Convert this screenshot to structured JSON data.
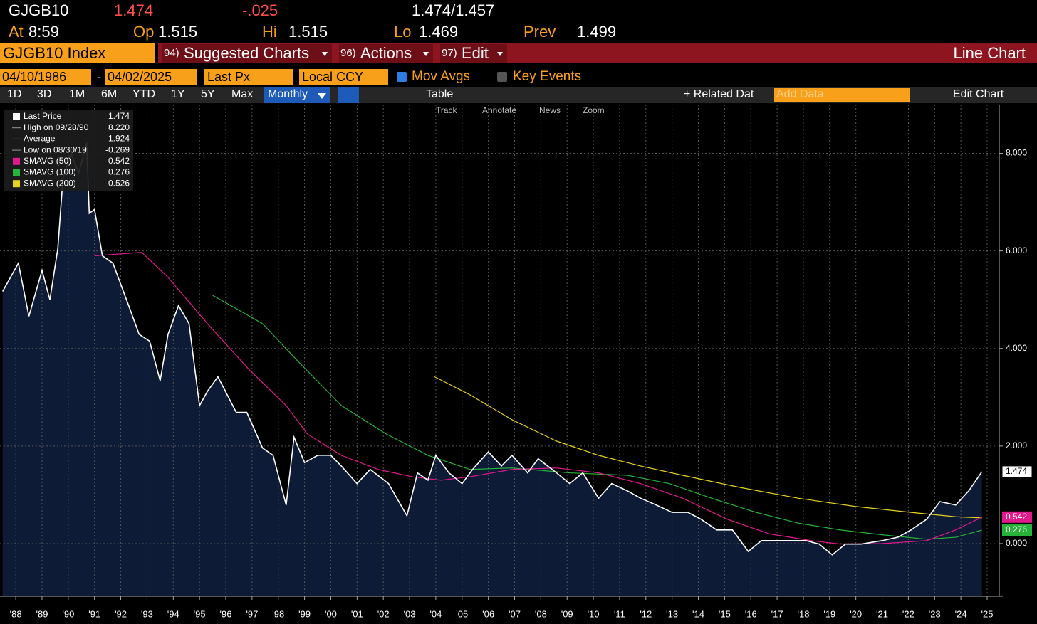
{
  "header": {
    "ticker": "GJGB10",
    "last": "1.474",
    "change": "-.025",
    "bid": "1.474",
    "sep": "/",
    "ask": "1.457",
    "quotes": [
      {
        "label": "At",
        "value": "8:59"
      },
      {
        "label": "Op",
        "value": "1.515"
      },
      {
        "label": "Hi",
        "value": "1.515"
      },
      {
        "label": "Lo",
        "value": "1.469"
      },
      {
        "label": "Prev",
        "value": "1.499"
      }
    ]
  },
  "toolbar": {
    "security": "GJGB10 Index",
    "menus": [
      {
        "num": "94)",
        "label": "Suggested Charts"
      },
      {
        "num": "96)",
        "label": "Actions"
      },
      {
        "num": "97)",
        "label": "Edit"
      }
    ],
    "view": "Line Chart"
  },
  "settings": {
    "start": "04/10/1986",
    "dash": "-",
    "end": "04/02/2025",
    "field": "Last Px",
    "currency": "Local CCY",
    "mov_avgs": "Mov Avgs",
    "key_events": "Key Events"
  },
  "ranges": {
    "buttons": [
      "1D",
      "3D",
      "1M",
      "6M",
      "YTD",
      "1Y",
      "5Y",
      "Max"
    ],
    "period": "Monthly",
    "table": "Table",
    "related": "+ Related Dat",
    "add_data": "Add Data",
    "edit_chart": "Edit Chart"
  },
  "tools": [
    "Track",
    "Annotate",
    "News",
    "Zoom"
  ],
  "chart_data": {
    "type": "line",
    "area_under_first": true,
    "grid": true,
    "xlim": [
      1987.4,
      2025.38
    ],
    "ylim": [
      -1.08,
      9.0
    ],
    "xticks": [
      {
        "value": 1988,
        "label": "'88"
      },
      {
        "value": 1989,
        "label": "'89"
      },
      {
        "value": 1990,
        "label": "'90"
      },
      {
        "value": 1991,
        "label": "'91"
      },
      {
        "value": 1992,
        "label": "'92"
      },
      {
        "value": 1993,
        "label": "'93"
      },
      {
        "value": 1994,
        "label": "'94"
      },
      {
        "value": 1995,
        "label": "'95"
      },
      {
        "value": 1996,
        "label": "'96"
      },
      {
        "value": 1997,
        "label": "'97"
      },
      {
        "value": 1998,
        "label": "'98"
      },
      {
        "value": 1999,
        "label": "'99"
      },
      {
        "value": 2000,
        "label": "'00"
      },
      {
        "value": 2001,
        "label": "'01"
      },
      {
        "value": 2002,
        "label": "'02"
      },
      {
        "value": 2003,
        "label": "'03"
      },
      {
        "value": 2004,
        "label": "'04"
      },
      {
        "value": 2005,
        "label": "'05"
      },
      {
        "value": 2006,
        "label": "'06"
      },
      {
        "value": 2007,
        "label": "'07"
      },
      {
        "value": 2008,
        "label": "'08"
      },
      {
        "value": 2009,
        "label": "'09"
      },
      {
        "value": 2010,
        "label": "'10"
      },
      {
        "value": 2011,
        "label": "'11"
      },
      {
        "value": 2012,
        "label": "'12"
      },
      {
        "value": 2013,
        "label": "'13"
      },
      {
        "value": 2014,
        "label": "'14"
      },
      {
        "value": 2015,
        "label": "'15"
      },
      {
        "value": 2016,
        "label": "'16"
      },
      {
        "value": 2017,
        "label": "'17"
      },
      {
        "value": 2018,
        "label": "'18"
      },
      {
        "value": 2019,
        "label": "'19"
      },
      {
        "value": 2020,
        "label": "'20"
      },
      {
        "value": 2021,
        "label": "'21"
      },
      {
        "value": 2022,
        "label": "'22"
      },
      {
        "value": 2023,
        "label": "'23"
      },
      {
        "value": 2024,
        "label": "'24"
      },
      {
        "value": 2025,
        "label": "'25"
      }
    ],
    "yticks": [
      {
        "value": 0,
        "label": "0.000"
      },
      {
        "value": 2,
        "label": "2.000"
      },
      {
        "value": 4,
        "label": "4.000"
      },
      {
        "value": 6,
        "label": "6.000"
      },
      {
        "value": 8,
        "label": "8.000"
      }
    ],
    "stats": [
      {
        "label": "High on 09/28/90",
        "value": "8.220"
      },
      {
        "label": "Average",
        "value": "1.924"
      },
      {
        "label": "Low on 08/30/19",
        "value": "-0.269"
      }
    ],
    "series": [
      {
        "name": "Last Price",
        "color": "#ffffff",
        "last_label": "1.474",
        "tag": true,
        "x": [
          1987.5,
          1988.1,
          1988.5,
          1989.0,
          1989.3,
          1989.6,
          1989.8,
          1990.1,
          1990.4,
          1990.7,
          1990.8,
          1991.0,
          1991.3,
          1991.7,
          1992.3,
          1992.7,
          1993.1,
          1993.5,
          1993.8,
          1994.2,
          1994.6,
          1995.0,
          1995.3,
          1995.7,
          1996.4,
          1996.8,
          1997.4,
          1997.8,
          1998.3,
          1998.6,
          1999.0,
          1999.5,
          2000.0,
          2000.4,
          2001.0,
          2001.5,
          2002.2,
          2002.9,
          2003.3,
          2003.7,
          2004.0,
          2004.5,
          2005.0,
          2005.4,
          2006.0,
          2006.5,
          2006.9,
          2007.5,
          2007.9,
          2008.6,
          2009.1,
          2009.6,
          2010.2,
          2010.7,
          2011.3,
          2011.8,
          2012.4,
          2013.0,
          2013.6,
          2014.1,
          2014.7,
          2015.3,
          2015.9,
          2016.4,
          2017.2,
          2018.1,
          2018.6,
          2019.1,
          2019.6,
          2020.2,
          2021.0,
          2021.6,
          2022.1,
          2022.7,
          2023.2,
          2023.8,
          2024.3,
          2024.8
        ],
        "values": [
          5.17,
          5.75,
          4.66,
          5.6,
          5.0,
          6.04,
          7.5,
          8.0,
          7.6,
          8.22,
          6.77,
          6.85,
          5.9,
          5.75,
          4.88,
          4.29,
          4.15,
          3.34,
          4.29,
          4.88,
          4.51,
          2.83,
          3.12,
          3.42,
          2.69,
          2.69,
          1.96,
          1.81,
          0.79,
          2.18,
          1.66,
          1.81,
          1.81,
          1.59,
          1.23,
          1.52,
          1.23,
          0.57,
          1.45,
          1.3,
          1.81,
          1.45,
          1.23,
          1.52,
          1.88,
          1.59,
          1.81,
          1.45,
          1.74,
          1.45,
          1.23,
          1.45,
          0.93,
          1.23,
          1.08,
          0.93,
          0.79,
          0.64,
          0.64,
          0.5,
          0.28,
          0.28,
          -0.16,
          0.06,
          0.06,
          0.06,
          -0.01,
          -0.23,
          -0.01,
          -0.01,
          0.06,
          0.13,
          0.28,
          0.5,
          0.86,
          0.79,
          1.08,
          1.474
        ]
      },
      {
        "name": "SMAVG (50)",
        "color": "#e0198c",
        "last_label": "0.542",
        "tag": true,
        "x": [
          1991.0,
          1992.8,
          1993.8,
          1995.3,
          1996.9,
          1998.3,
          1999.1,
          2000.4,
          2001.8,
          2003.1,
          2004.2,
          2005.3,
          2006.9,
          2008.6,
          2010.2,
          2011.8,
          2013.4,
          2015.1,
          2016.7,
          2018.3,
          2019.4,
          2021.0,
          2022.7,
          2023.8,
          2024.8
        ],
        "values": [
          5.9,
          5.97,
          5.46,
          4.51,
          3.56,
          2.83,
          2.25,
          1.81,
          1.52,
          1.37,
          1.3,
          1.37,
          1.52,
          1.55,
          1.45,
          1.23,
          0.93,
          0.5,
          0.2,
          0.06,
          -0.01,
          0.0,
          0.06,
          0.28,
          0.542
        ]
      },
      {
        "name": "SMAVG (100)",
        "color": "#27b33a",
        "last_label": "0.276",
        "tag": true,
        "x": [
          1995.5,
          1997.4,
          1998.8,
          2000.4,
          2002.1,
          2003.7,
          2005.3,
          2006.9,
          2009.1,
          2011.3,
          2012.9,
          2014.5,
          2016.2,
          2017.8,
          2019.4,
          2021.0,
          2022.7,
          2023.8,
          2024.8
        ],
        "values": [
          5.09,
          4.51,
          3.71,
          2.83,
          2.25,
          1.81,
          1.52,
          1.55,
          1.45,
          1.4,
          1.23,
          0.93,
          0.64,
          0.42,
          0.28,
          0.18,
          0.09,
          0.13,
          0.276
        ]
      },
      {
        "name": "SMAVG (200)",
        "color": "#e6d320",
        "last_label": "0.526",
        "tag": false,
        "x": [
          2003.95,
          2005.3,
          2006.9,
          2008.6,
          2010.2,
          2011.8,
          2013.4,
          2015.6,
          2017.8,
          2020.0,
          2022.1,
          2023.8,
          2024.8
        ],
        "values": [
          3.42,
          3.05,
          2.54,
          2.1,
          1.81,
          1.59,
          1.4,
          1.15,
          0.93,
          0.76,
          0.64,
          0.55,
          0.526
        ]
      }
    ]
  }
}
